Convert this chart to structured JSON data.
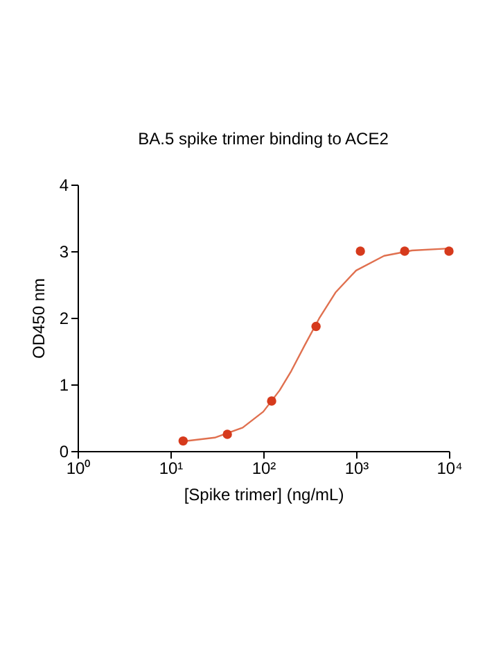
{
  "chart_data": {
    "type": "scatter",
    "title": "BA.5 spike trimer binding to ACE2",
    "xlabel": "[Spike trimer]  (ng/mL)",
    "ylabel": "OD450 nm",
    "log": "x",
    "grid": false,
    "marker": "circle",
    "xlim": [
      1,
      10000
    ],
    "xticks": [
      {
        "value": 1,
        "label": "10⁰"
      },
      {
        "value": 10,
        "label": "10¹"
      },
      {
        "value": 100,
        "label": "10²"
      },
      {
        "value": 1000,
        "label": "10³"
      },
      {
        "value": 10000,
        "label": "10⁴"
      }
    ],
    "ylim": [
      0,
      4
    ],
    "yticks": [
      0,
      1,
      2,
      3,
      4
    ],
    "series": [
      {
        "color": "#d63a1c",
        "x": [
          13.7,
          41,
          123,
          370,
          1111,
          3333,
          10000
        ],
        "values": [
          0.15,
          0.25,
          0.75,
          1.87,
          3.0,
          3.0,
          3.0
        ]
      },
      {
        "type": "line",
        "color": "#e0704f",
        "line_style": "solid",
        "marker": "none",
        "x": [
          13,
          30,
          60,
          100,
          150,
          200,
          280,
          400,
          600,
          1000,
          2000,
          4000,
          10000
        ],
        "values": [
          0.14,
          0.2,
          0.35,
          0.59,
          0.91,
          1.2,
          1.59,
          1.99,
          2.38,
          2.71,
          2.93,
          3.01,
          3.04
        ]
      }
    ]
  }
}
